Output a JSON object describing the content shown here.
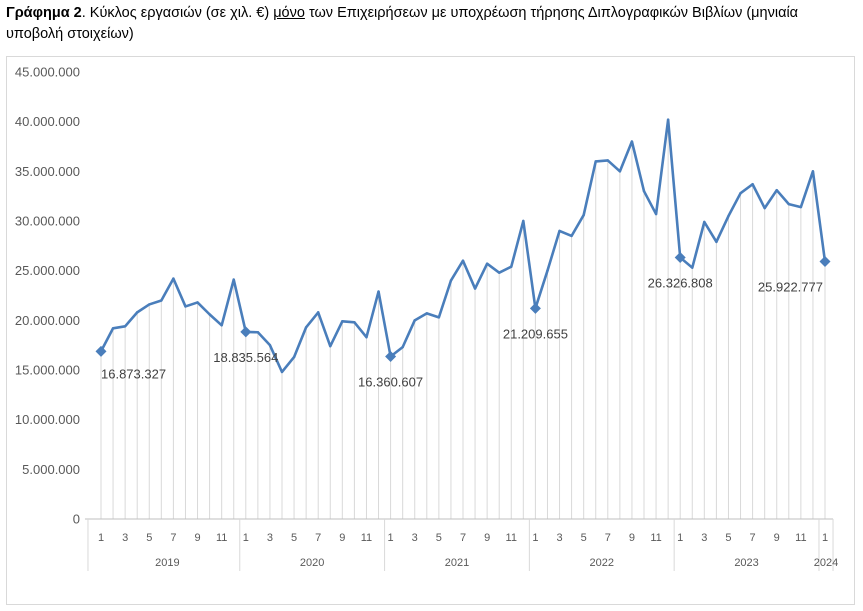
{
  "caption": {
    "label": "Γράφημα 2",
    "text_before": ". Κύκλος εργασιών (σε χιλ. €) ",
    "emphasis": "μόνο",
    "text_after": " των Επιχειρήσεων με υποχρέωση τήρησης Διπλογραφικών Βιβλίων (μηνιαία υποβολή στοιχείων)"
  },
  "colors": {
    "line": "#4a7ebb",
    "grid": "#d9d9d9",
    "axis": "#bfbfbf",
    "text": "#595959"
  },
  "chart_data": {
    "type": "line",
    "title": "",
    "xlabel": "",
    "ylabel": "",
    "ylim": [
      0,
      45000000
    ],
    "y_ticks": [
      "0",
      "5.000.000",
      "10.000.000",
      "15.000.000",
      "20.000.000",
      "25.000.000",
      "30.000.000",
      "35.000.000",
      "40.000.000",
      "45.000.000"
    ],
    "grid": "vertical drop lines",
    "years": [
      "2019",
      "2020",
      "2021",
      "2022",
      "2023",
      "2024"
    ],
    "month_tick_labels": [
      "1",
      "3",
      "5",
      "7",
      "9",
      "11"
    ],
    "last_tick_label": "1",
    "series": [
      {
        "values": [
          16873327,
          19200000,
          19400000,
          20800000,
          21600000,
          22000000,
          24200000,
          21400000,
          21800000,
          20600000,
          19500000,
          24100000,
          18835564,
          18800000,
          17500000,
          14800000,
          16300000,
          19300000,
          20800000,
          17400000,
          19900000,
          19800000,
          18300000,
          22900000,
          16360607,
          17300000,
          20000000,
          20700000,
          20300000,
          24000000,
          26000000,
          23200000,
          25700000,
          24800000,
          25400000,
          30000000,
          21209655,
          25000000,
          29000000,
          28500000,
          30600000,
          36000000,
          36100000,
          35000000,
          38000000,
          33000000,
          30700000,
          40200000,
          26326808,
          25300000,
          29900000,
          27900000,
          30500000,
          32800000,
          33700000,
          31300000,
          33100000,
          31700000,
          31400000,
          35000000,
          25922777
        ]
      }
    ],
    "markers": [
      {
        "index": 0,
        "label": "16.873.327"
      },
      {
        "index": 12,
        "label": "18.835.564"
      },
      {
        "index": 24,
        "label": "16.360.607"
      },
      {
        "index": 36,
        "label": "21.209.655"
      },
      {
        "index": 48,
        "label": "26.326.808"
      },
      {
        "index": 60,
        "label": "25.922.777"
      }
    ]
  }
}
